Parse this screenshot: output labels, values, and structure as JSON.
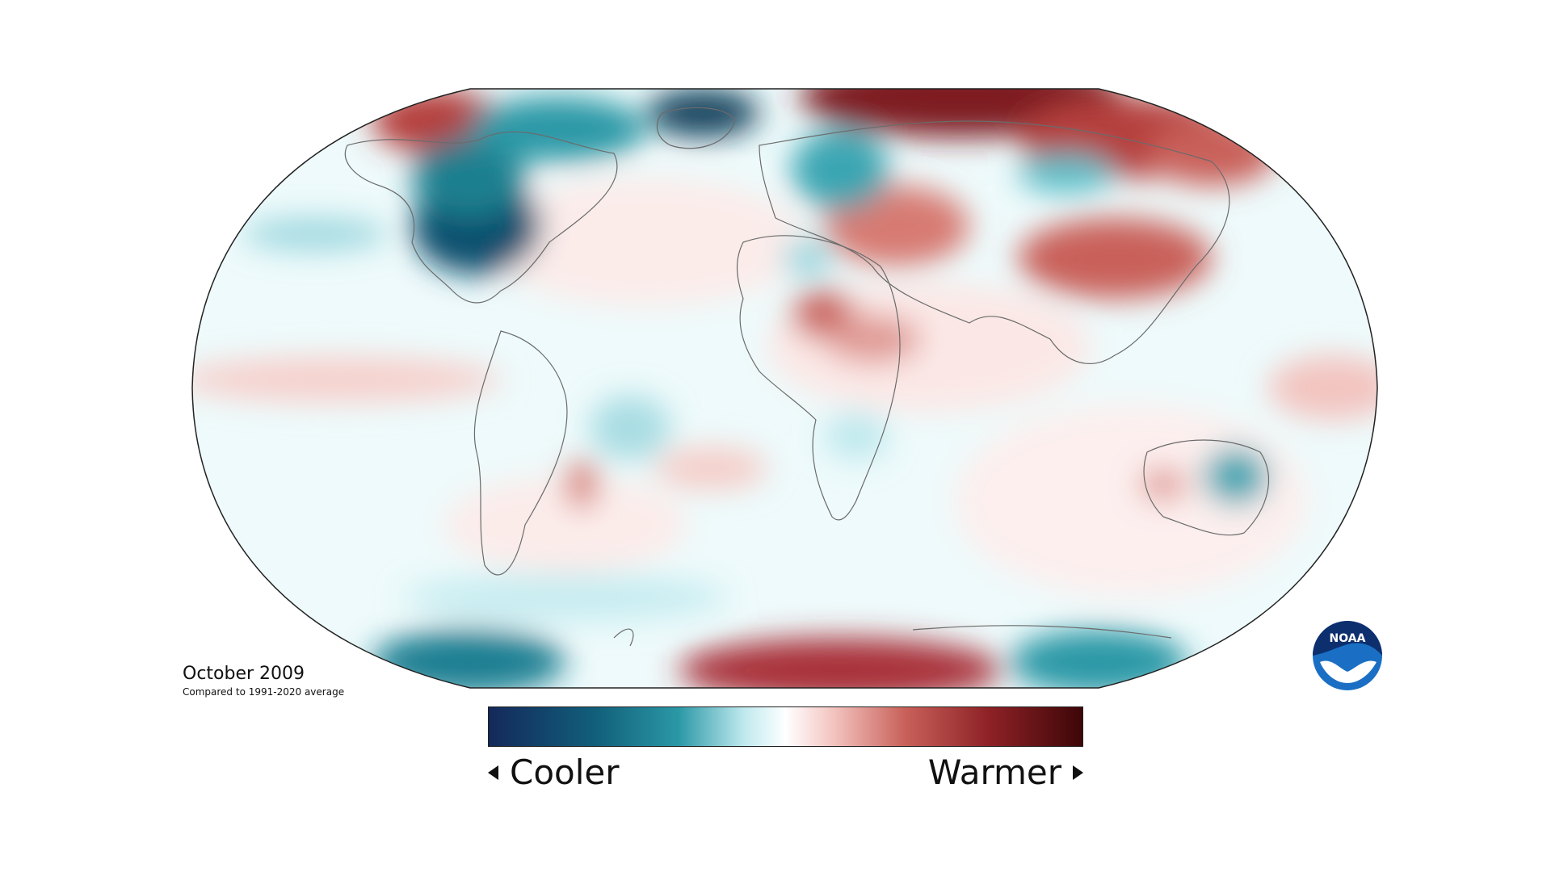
{
  "caption": {
    "title": "October 2009",
    "subtitle": "Compared to 1991-2020 average"
  },
  "legend": {
    "cool_label": "Cooler",
    "warm_label": "Warmer"
  },
  "colors": {
    "very_cool": "#14285a",
    "cool": "#1a7f8f",
    "light_cool": "#bfe9ee",
    "neutral": "#ffffff",
    "light_warm": "#f3c4c0",
    "warm": "#b8403a",
    "very_warm": "#4a0a0c",
    "land_outline": "#6b6b6b",
    "globe_outline": "#222222"
  },
  "logo": {
    "text": "NOAA",
    "icon": "noaa-logo-icon"
  }
}
